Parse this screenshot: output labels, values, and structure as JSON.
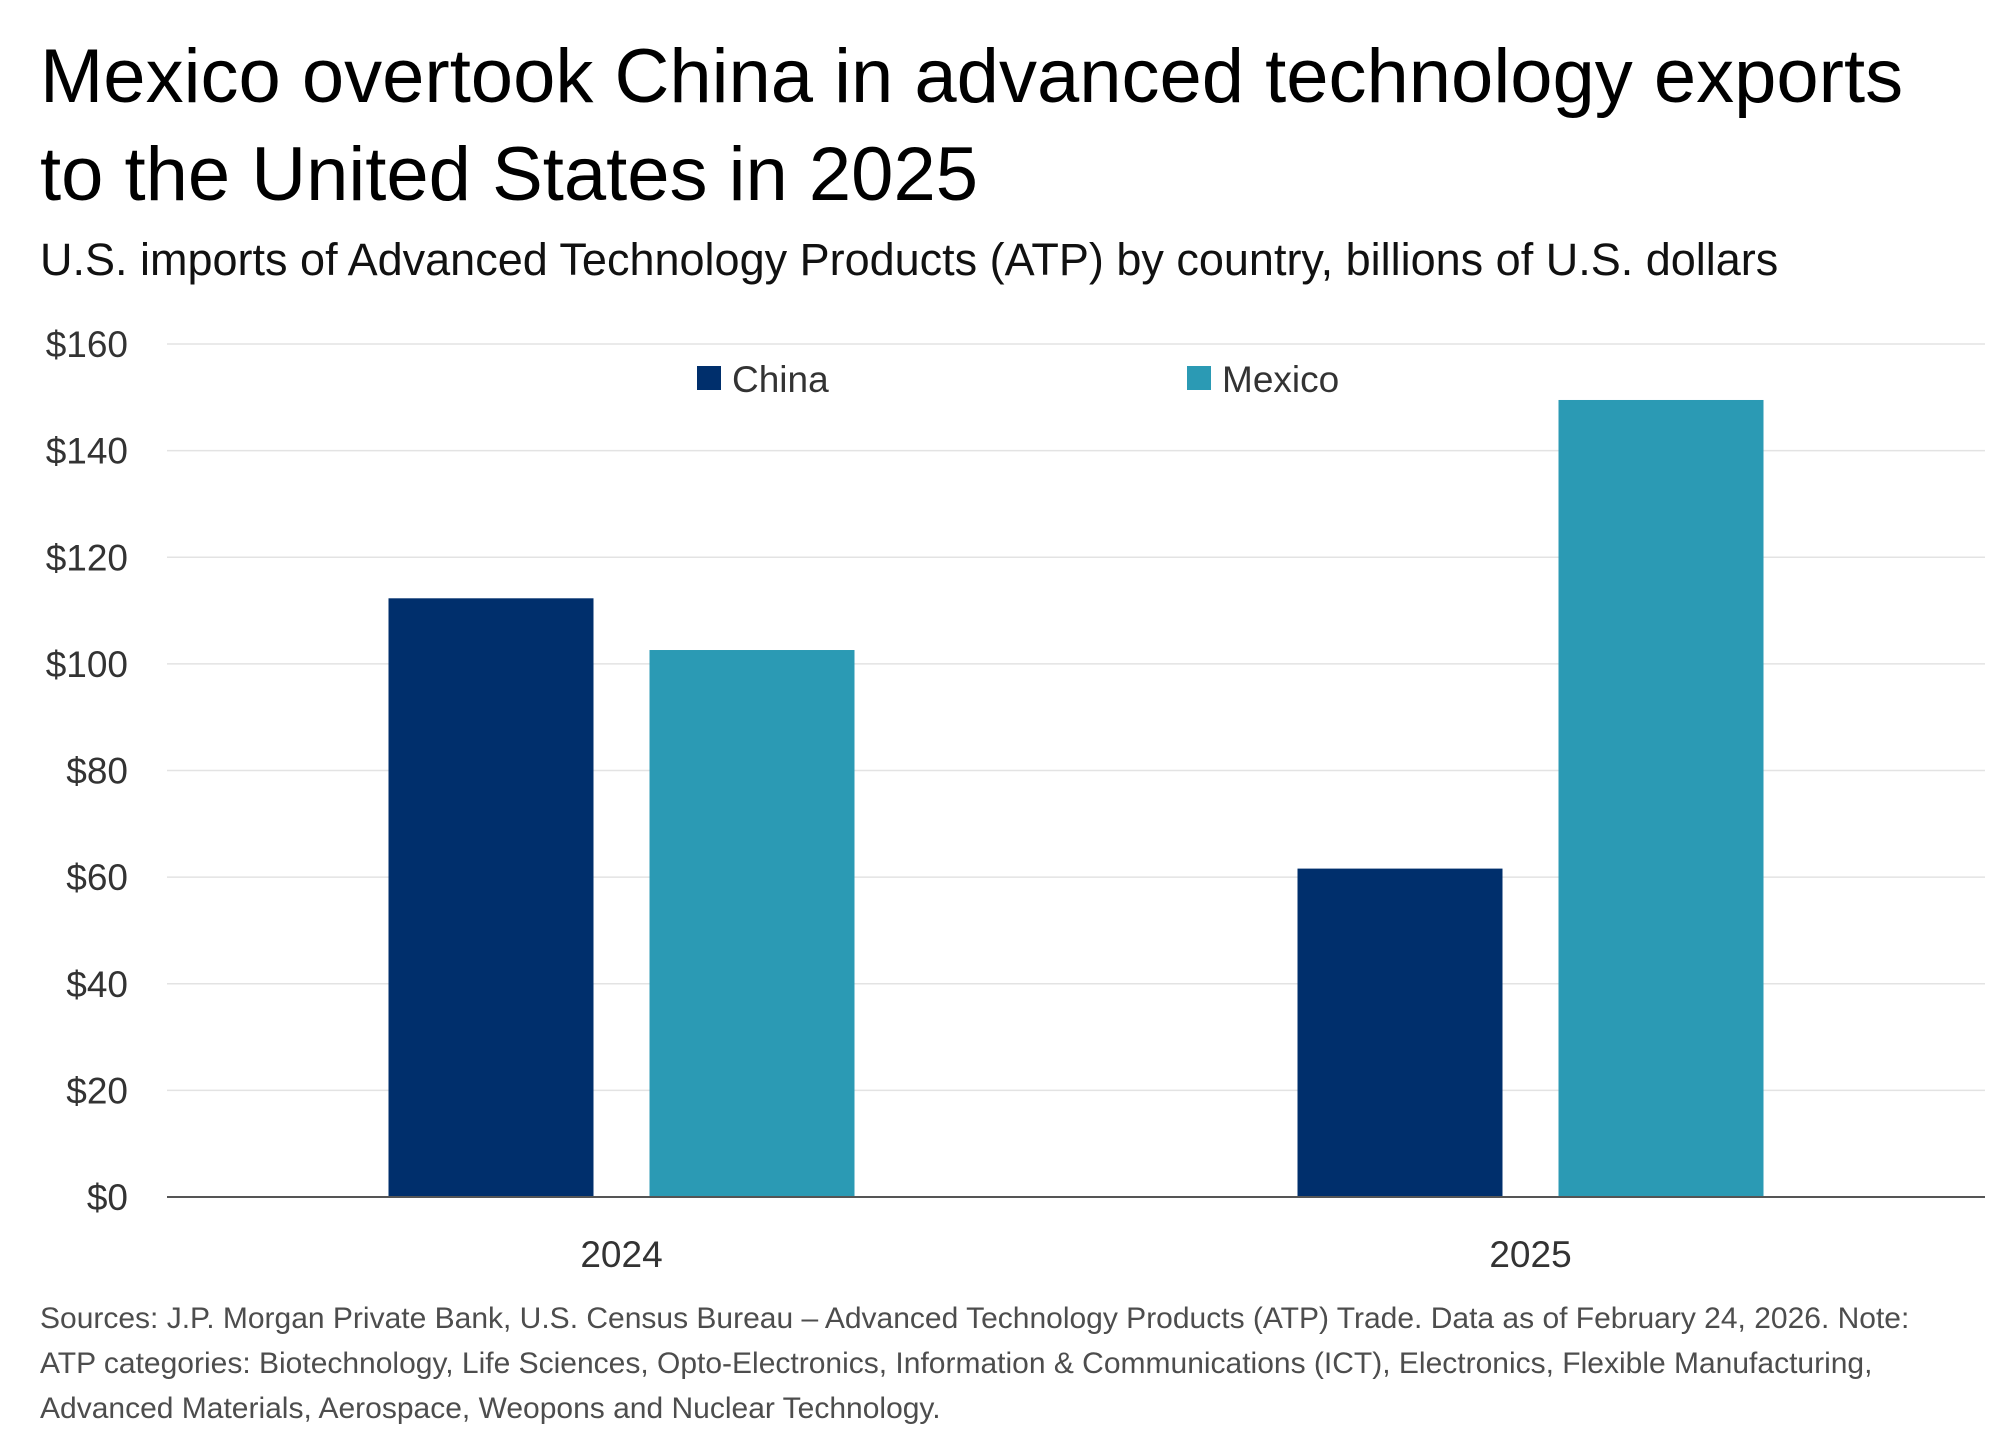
{
  "title": "Mexico overtook China in advanced technology exports to the United States in 2025",
  "subtitle": "U.S. imports of Advanced Technology Products (ATP) by country, billions of U.S. dollars",
  "source_note": "Sources: J.P. Morgan Private Bank, U.S. Census Bureau – Advanced Technology Products (ATP) Trade. Data as of February 24, 2026. Note: ATP categories: Biotechnology, Life Sciences, Opto-Electronics, Information & Communications (ICT), Electronics, Flexible Manufacturing, Advanced Materials, Aerospace, Weopons and Nuclear Technology.",
  "chart_data": {
    "type": "bar",
    "categories": [
      "2024",
      "2025"
    ],
    "series": [
      {
        "name": "China",
        "values": [
          112.3,
          61.6
        ],
        "color": "#002f6c"
      },
      {
        "name": "Mexico",
        "values": [
          102.6,
          149.5
        ],
        "color": "#2b9ab4"
      }
    ],
    "ylim": [
      0,
      160
    ],
    "yticks": [
      0,
      20,
      40,
      60,
      80,
      100,
      120,
      140,
      160
    ],
    "ytick_labels": [
      "$0",
      "$20",
      "$40",
      "$60",
      "$80",
      "$100",
      "$120",
      "$140",
      "$160"
    ],
    "xlabel": "",
    "ylabel": "",
    "grid": true,
    "legend_position": "top-center"
  }
}
